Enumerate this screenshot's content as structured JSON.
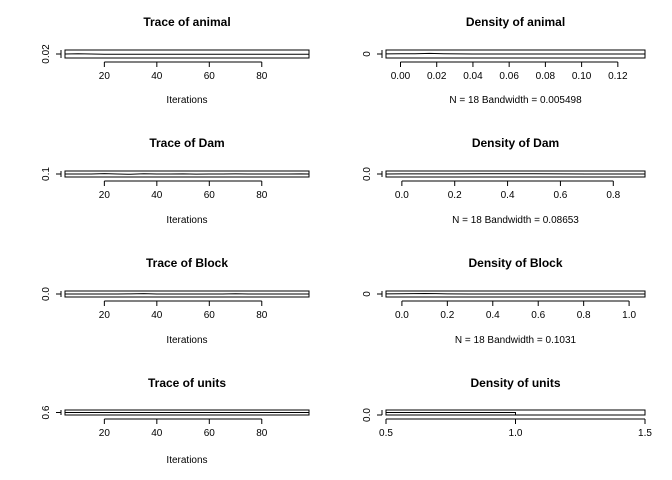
{
  "chart_data": [
    {
      "type": "line",
      "title": "Trace of animal",
      "xlabel": "Iterations",
      "xlim": [
        5,
        98
      ],
      "ylim": [
        0.0,
        0.04
      ],
      "x_ticks": [
        20,
        40,
        60,
        80
      ],
      "x_tick_labels": [
        "20",
        "40",
        "60",
        "80"
      ],
      "y_ticks": [
        0.02
      ],
      "y_tick_labels": [
        "0.02"
      ],
      "series": [
        {
          "x": [
            5,
            10,
            15,
            20,
            25,
            30,
            35,
            40,
            45,
            50,
            55,
            60,
            65,
            70,
            75,
            80,
            85,
            90,
            95,
            98
          ],
          "values": [
            0.02,
            0.021,
            0.02,
            0.019,
            0.019,
            0.019,
            0.019,
            0.019,
            0.019,
            0.019,
            0.019,
            0.019,
            0.019,
            0.019,
            0.019,
            0.019,
            0.019,
            0.019,
            0.019,
            0.019
          ]
        }
      ]
    },
    {
      "type": "line",
      "title": "Density of animal",
      "xlabel": "N = 18   Bandwidth = 0.005498",
      "xlim": [
        -0.008,
        0.135
      ],
      "ylim": [
        -20,
        20
      ],
      "x_ticks": [
        0,
        0.02,
        0.04,
        0.06,
        0.08,
        0.1,
        0.12
      ],
      "x_tick_labels": [
        "0.00",
        "0.02",
        "0.04",
        "0.06",
        "0.08",
        "0.10",
        "0.12"
      ],
      "y_ticks": [
        0
      ],
      "y_tick_labels": [
        "0"
      ],
      "series": [
        {
          "x": [
            -0.008,
            0.0,
            0.008,
            0.016,
            0.024,
            0.032,
            0.04,
            0.06,
            0.08,
            0.1,
            0.12,
            0.135
          ],
          "values": [
            0.5,
            1.0,
            1.5,
            3.0,
            1.5,
            0.5,
            0.2,
            0.1,
            0.0,
            0.0,
            0.0,
            0.0
          ]
        }
      ]
    },
    {
      "type": "line",
      "title": "Trace of Dam",
      "xlabel": "Iterations",
      "xlim": [
        5,
        98
      ],
      "ylim": [
        0.0,
        0.2
      ],
      "x_ticks": [
        20,
        40,
        60,
        80
      ],
      "x_tick_labels": [
        "20",
        "40",
        "60",
        "80"
      ],
      "y_ticks": [
        0.1
      ],
      "y_tick_labels": [
        "0.1"
      ],
      "series": [
        {
          "x": [
            5,
            10,
            15,
            20,
            25,
            30,
            35,
            40,
            45,
            50,
            55,
            60,
            65,
            70,
            75,
            80,
            85,
            90,
            95,
            98
          ],
          "values": [
            0.1,
            0.1,
            0.1,
            0.112,
            0.1,
            0.09,
            0.11,
            0.1,
            0.1,
            0.106,
            0.094,
            0.1,
            0.1,
            0.104,
            0.1,
            0.1,
            0.1,
            0.1,
            0.104,
            0.1
          ]
        }
      ]
    },
    {
      "type": "line",
      "title": "Density of Dam",
      "xlabel": "N = 18   Bandwidth = 0.08653",
      "xlim": [
        -0.06,
        0.92
      ],
      "ylim": [
        -2.5,
        2.5
      ],
      "x_ticks": [
        0,
        0.2,
        0.4,
        0.6,
        0.8
      ],
      "x_tick_labels": [
        "0.0",
        "0.2",
        "0.4",
        "0.6",
        "0.8"
      ],
      "y_ticks": [
        0
      ],
      "y_tick_labels": [
        "0.0"
      ],
      "series": [
        {
          "x": [
            -0.06,
            0.0,
            0.1,
            0.2,
            0.3,
            0.4,
            0.5,
            0.6,
            0.7,
            0.8,
            0.92
          ],
          "values": [
            0.05,
            0.06,
            0.1,
            0.15,
            0.2,
            0.25,
            0.2,
            0.1,
            0.05,
            0.02,
            0.0
          ]
        }
      ]
    },
    {
      "type": "line",
      "title": "Trace of Block",
      "xlabel": "Iterations",
      "xlim": [
        5,
        98
      ],
      "ylim": [
        -0.2,
        0.2
      ],
      "x_ticks": [
        20,
        40,
        60,
        80
      ],
      "x_tick_labels": [
        "20",
        "40",
        "60",
        "80"
      ],
      "y_ticks": [
        0.0
      ],
      "y_tick_labels": [
        "0.0"
      ],
      "series": [
        {
          "x": [
            5,
            10,
            15,
            20,
            25,
            30,
            35,
            40,
            45,
            50,
            55,
            60,
            65,
            70,
            75,
            80,
            85,
            90,
            95,
            98
          ],
          "values": [
            0.0,
            0.0,
            0.0,
            0.0,
            0.0,
            0.01,
            0.024,
            0.0,
            0.0,
            0.0,
            0.004,
            0.0,
            0.0,
            0.014,
            0.004,
            0.0,
            0.0,
            0.0,
            0.0,
            0.0
          ]
        }
      ]
    },
    {
      "type": "line",
      "title": "Density of Block",
      "xlabel": "N = 18   Bandwidth = 0.1031",
      "xlim": [
        -0.07,
        1.07
      ],
      "ylim": [
        -10,
        10
      ],
      "x_ticks": [
        0,
        0.2,
        0.4,
        0.6,
        0.8,
        1.0
      ],
      "x_tick_labels": [
        "0.0",
        "0.2",
        "0.4",
        "0.6",
        "0.8",
        "1.0"
      ],
      "y_ticks": [
        0
      ],
      "y_tick_labels": [
        "0"
      ],
      "series": [
        {
          "x": [
            -0.07,
            0.0,
            0.05,
            0.1,
            0.15,
            0.2,
            0.3,
            0.4,
            0.6,
            0.8,
            1.0,
            1.07
          ],
          "values": [
            0.4,
            0.9,
            1.4,
            1.8,
            1.2,
            0.6,
            0.2,
            0.05,
            0.0,
            0.0,
            0.0,
            0.0
          ]
        }
      ]
    },
    {
      "type": "line",
      "title": "Trace of units",
      "xlabel": "Iterations",
      "xlim": [
        5,
        98
      ],
      "ylim": [
        0.2,
        1.0
      ],
      "x_ticks": [
        20,
        40,
        60,
        80
      ],
      "x_tick_labels": [
        "20",
        "40",
        "60",
        "80"
      ],
      "y_ticks": [
        0.6
      ],
      "y_tick_labels": [
        "0.6"
      ],
      "series": [
        {
          "x": [
            5,
            98
          ],
          "values": [
            0.6,
            0.6
          ]
        }
      ]
    },
    {
      "type": "line",
      "title": "Density of units",
      "xlabel": "",
      "xlim": [
        0.5,
        1.5
      ],
      "ylim": [
        0.0,
        2.0
      ],
      "x_ticks": [
        0.5,
        1.0,
        1.5
      ],
      "x_tick_labels": [
        "0.5",
        "1.0",
        "1.5"
      ],
      "y_ticks": [
        0.0
      ],
      "y_tick_labels": [
        "0.0"
      ],
      "series": [
        {
          "x": [
            0.5,
            0.5,
            1.0,
            1.0,
            1.5
          ],
          "values": [
            0.0,
            1.0,
            1.0,
            0.0,
            0.0
          ]
        }
      ]
    }
  ]
}
